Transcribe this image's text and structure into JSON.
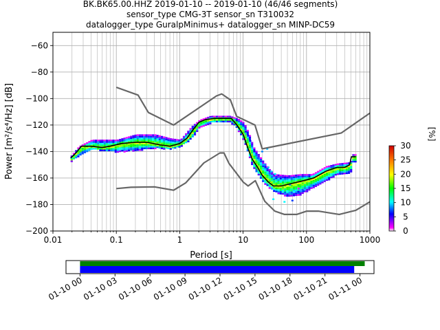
{
  "title_lines": [
    "BK.BK65.00.HHZ   2019-01-10 -- 2019-01-10  (46/46 segments)",
    "sensor_type CMG-3T sensor_sn T310032",
    "datalogger_type GuralpMinimus+ datalogger_sn MINP-DC59"
  ],
  "colors": {
    "model_lines": "#666666",
    "mode_line": "#000000",
    "grid": "#b0b0b0",
    "timeline_green": "#008000",
    "timeline_blue": "#0000ff"
  },
  "chart_data": {
    "type": "heatmap",
    "subtype": "probabilistic-power-spectral-density",
    "xlabel": "Period [s]",
    "ylabel": "Power [m²/s⁴/Hz] [dB]",
    "xscale": "log",
    "xlim": [
      0.01,
      1000
    ],
    "ylim": [
      -200,
      -50
    ],
    "xticks": [
      {
        "value": 0.01,
        "label": "0.01"
      },
      {
        "value": 0.1,
        "label": "0.1"
      },
      {
        "value": 1,
        "label": "1"
      },
      {
        "value": 10,
        "label": "10"
      },
      {
        "value": 100,
        "label": "100"
      },
      {
        "value": 1000,
        "label": "1000"
      }
    ],
    "yticks": [
      -60,
      -80,
      -100,
      -120,
      -140,
      -160,
      -180,
      -200
    ],
    "ytick_labels": [
      "−60",
      "−80",
      "−100",
      "−120",
      "−140",
      "−160",
      "−180",
      "−200"
    ],
    "grid": true,
    "colorbar": {
      "label": "[%]",
      "min": 0,
      "max": 30,
      "ticks": [
        0,
        5,
        10,
        15,
        20,
        25,
        30
      ],
      "colormap": "pqlx",
      "position": "right"
    },
    "noise_models": [
      {
        "id": "new-high-noise-model",
        "points": [
          [
            0.1,
            -91.5
          ],
          [
            0.22,
            -97.4
          ],
          [
            0.32,
            -110.5
          ],
          [
            0.8,
            -120
          ],
          [
            3.8,
            -98
          ],
          [
            4.6,
            -96.5
          ],
          [
            6.3,
            -101
          ],
          [
            7.9,
            -113.5
          ],
          [
            15.4,
            -120
          ],
          [
            20,
            -138
          ],
          [
            354.8,
            -126
          ],
          [
            1000,
            -111
          ]
        ]
      },
      {
        "id": "new-low-noise-model",
        "points": [
          [
            0.1,
            -168
          ],
          [
            0.17,
            -167
          ],
          [
            0.4,
            -166.7
          ],
          [
            0.8,
            -169.2
          ],
          [
            1.24,
            -163.7
          ],
          [
            2.4,
            -148.6
          ],
          [
            4.3,
            -141.1
          ],
          [
            5,
            -141.1
          ],
          [
            6,
            -149
          ],
          [
            10,
            -163
          ],
          [
            12,
            -166
          ],
          [
            15.6,
            -162
          ],
          [
            21.9,
            -177.5
          ],
          [
            31.6,
            -185
          ],
          [
            45,
            -187.5
          ],
          [
            70,
            -187.5
          ],
          [
            101,
            -185
          ],
          [
            154,
            -185
          ],
          [
            328,
            -187.5
          ],
          [
            600,
            -184.4
          ],
          [
            1000,
            -178
          ]
        ]
      }
    ],
    "mode_line": {
      "points": [
        [
          0.019,
          -145
        ],
        [
          0.022,
          -142
        ],
        [
          0.025,
          -139
        ],
        [
          0.028,
          -136
        ],
        [
          0.04,
          -136
        ],
        [
          0.06,
          -137
        ],
        [
          0.08,
          -136
        ],
        [
          0.12,
          -134
        ],
        [
          0.2,
          -133
        ],
        [
          0.3,
          -133
        ],
        [
          0.5,
          -135
        ],
        [
          0.7,
          -136
        ],
        [
          1.0,
          -134
        ],
        [
          1.3,
          -130
        ],
        [
          1.6,
          -124
        ],
        [
          2.0,
          -118
        ],
        [
          2.5,
          -116
        ],
        [
          3.5,
          -115
        ],
        [
          5.0,
          -115
        ],
        [
          6.5,
          -115
        ],
        [
          8.0,
          -120
        ],
        [
          10,
          -127
        ],
        [
          12,
          -138
        ],
        [
          14,
          -146
        ],
        [
          17,
          -152
        ],
        [
          20,
          -158
        ],
        [
          25,
          -163
        ],
        [
          30,
          -166
        ],
        [
          40,
          -166
        ],
        [
          60,
          -164
        ],
        [
          90,
          -162
        ],
        [
          130,
          -160
        ],
        [
          200,
          -155
        ],
        [
          300,
          -152
        ],
        [
          400,
          -152
        ],
        [
          480,
          -150
        ],
        [
          510,
          -144
        ],
        [
          600,
          -144
        ]
      ]
    },
    "density_band": {
      "upper": [
        [
          0.019,
          -143
        ],
        [
          0.025,
          -136
        ],
        [
          0.04,
          -131
        ],
        [
          0.1,
          -131
        ],
        [
          0.2,
          -127
        ],
        [
          0.4,
          -127
        ],
        [
          0.7,
          -130
        ],
        [
          1.0,
          -131
        ],
        [
          1.5,
          -121
        ],
        [
          2.0,
          -116
        ],
        [
          3.0,
          -113
        ],
        [
          6.0,
          -113
        ],
        [
          8.0,
          -115
        ],
        [
          10,
          -118
        ],
        [
          12,
          -126
        ],
        [
          14,
          -136
        ],
        [
          17,
          -142
        ],
        [
          20,
          -147
        ],
        [
          25,
          -153
        ],
        [
          30,
          -157
        ],
        [
          50,
          -158
        ],
        [
          80,
          -157
        ],
        [
          120,
          -157
        ],
        [
          200,
          -151
        ],
        [
          300,
          -149
        ],
        [
          480,
          -148
        ],
        [
          520,
          -142
        ],
        [
          600,
          -142
        ]
      ],
      "lower": [
        [
          0.019,
          -147
        ],
        [
          0.025,
          -143
        ],
        [
          0.04,
          -138
        ],
        [
          0.1,
          -140
        ],
        [
          0.2,
          -139
        ],
        [
          0.4,
          -137
        ],
        [
          0.7,
          -138
        ],
        [
          1.0,
          -136
        ],
        [
          1.5,
          -130
        ],
        [
          2.0,
          -121
        ],
        [
          3.0,
          -118
        ],
        [
          6.0,
          -117
        ],
        [
          8.0,
          -123
        ],
        [
          10,
          -132
        ],
        [
          12,
          -143
        ],
        [
          14,
          -152
        ],
        [
          17,
          -158
        ],
        [
          20,
          -163
        ],
        [
          25,
          -167
        ],
        [
          30,
          -170
        ],
        [
          50,
          -174
        ],
        [
          80,
          -172
        ],
        [
          120,
          -167
        ],
        [
          200,
          -162
        ],
        [
          300,
          -157
        ],
        [
          480,
          -156
        ],
        [
          520,
          -148
        ],
        [
          600,
          -148
        ]
      ]
    },
    "scatter_outliers": [
      [
        17,
        -145
      ],
      [
        19,
        -147
      ],
      [
        22,
        -150
      ],
      [
        25,
        -152
      ],
      [
        28,
        -155
      ],
      [
        32,
        -157
      ],
      [
        40,
        -162
      ],
      [
        55,
        -165
      ],
      [
        75,
        -168
      ],
      [
        90,
        -170
      ],
      [
        30,
        -176
      ],
      [
        45,
        -178
      ],
      [
        60,
        -177
      ],
      [
        20,
        -140
      ],
      [
        24,
        -138
      ],
      [
        13,
        -132
      ],
      [
        12,
        -128
      ],
      [
        11,
        -125
      ]
    ]
  },
  "timeline": {
    "xlabels": [
      "01-10 00",
      "01-10 03",
      "01-10 06",
      "01-10 09",
      "01-10 12",
      "01-10 15",
      "01-10 18",
      "01-10 21",
      "01-11 00"
    ],
    "hours_start": 0,
    "hours_end": 24,
    "axis_range_hours": [
      -1.2,
      25.2
    ],
    "green_bar": [
      0,
      24.4
    ],
    "blue_bar": [
      0,
      23.5
    ]
  }
}
